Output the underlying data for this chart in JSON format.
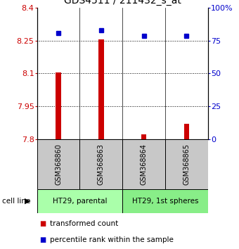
{
  "title": "GDS4511 / 211432_s_at",
  "samples": [
    "GSM368860",
    "GSM368863",
    "GSM368864",
    "GSM368865"
  ],
  "bar_values": [
    8.105,
    8.255,
    7.822,
    7.872
  ],
  "bar_base": 7.8,
  "percentile_values": [
    80.5,
    83.0,
    78.5,
    78.5
  ],
  "left_ylim": [
    7.8,
    8.4
  ],
  "right_ylim": [
    0,
    100
  ],
  "left_yticks": [
    7.8,
    7.95,
    8.1,
    8.25,
    8.4
  ],
  "right_yticks": [
    0,
    25,
    50,
    75,
    100
  ],
  "right_yticklabels": [
    "0",
    "25",
    "50",
    "75",
    "100%"
  ],
  "dotted_lines": [
    7.95,
    8.1,
    8.25
  ],
  "bar_color": "#cc0000",
  "percentile_color": "#0000cc",
  "cell_line_groups": [
    {
      "label": "HT29, parental",
      "color": "#aaffaa"
    },
    {
      "label": "HT29, 1st spheres",
      "color": "#88ee88"
    }
  ],
  "cell_line_label": "cell line",
  "legend_transformed": "transformed count",
  "legend_percentile": "percentile rank within the sample",
  "sample_box_color": "#c8c8c8",
  "figsize": [
    3.4,
    3.54
  ],
  "dpi": 100
}
